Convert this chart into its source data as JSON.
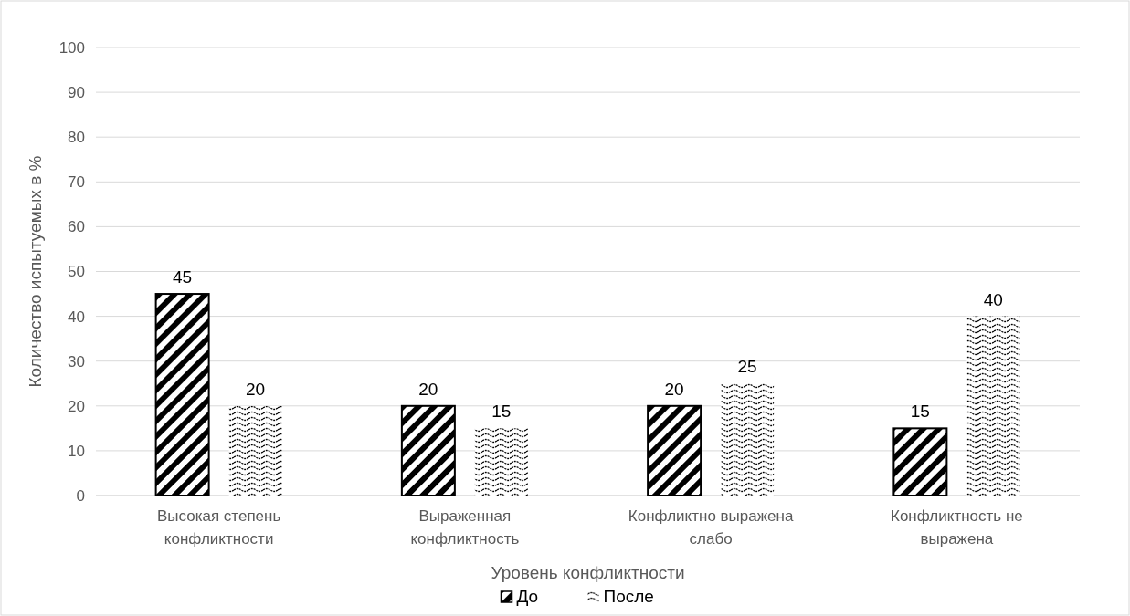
{
  "chart_data": {
    "type": "bar",
    "xlabel": "Уровень конфликтности",
    "ylabel": "Количество испытуемых в %",
    "categories": [
      "Высокая степень конфликтности",
      "Выраженная конфликтность",
      "Конфликтно выражена слабо",
      "Конфликтность не выражена"
    ],
    "series": [
      {
        "name": "До",
        "color": "#000000",
        "values": [
          45,
          20,
          20,
          15
        ]
      },
      {
        "name": "После",
        "color": "#000000",
        "values": [
          20,
          15,
          25,
          40
        ]
      }
    ],
    "ylim": [
      0,
      100
    ],
    "yticks": [
      0,
      10,
      20,
      30,
      40,
      50,
      60,
      70,
      80,
      90,
      100
    ],
    "grid": "y",
    "legend": "bottom",
    "data_labels": true
  }
}
